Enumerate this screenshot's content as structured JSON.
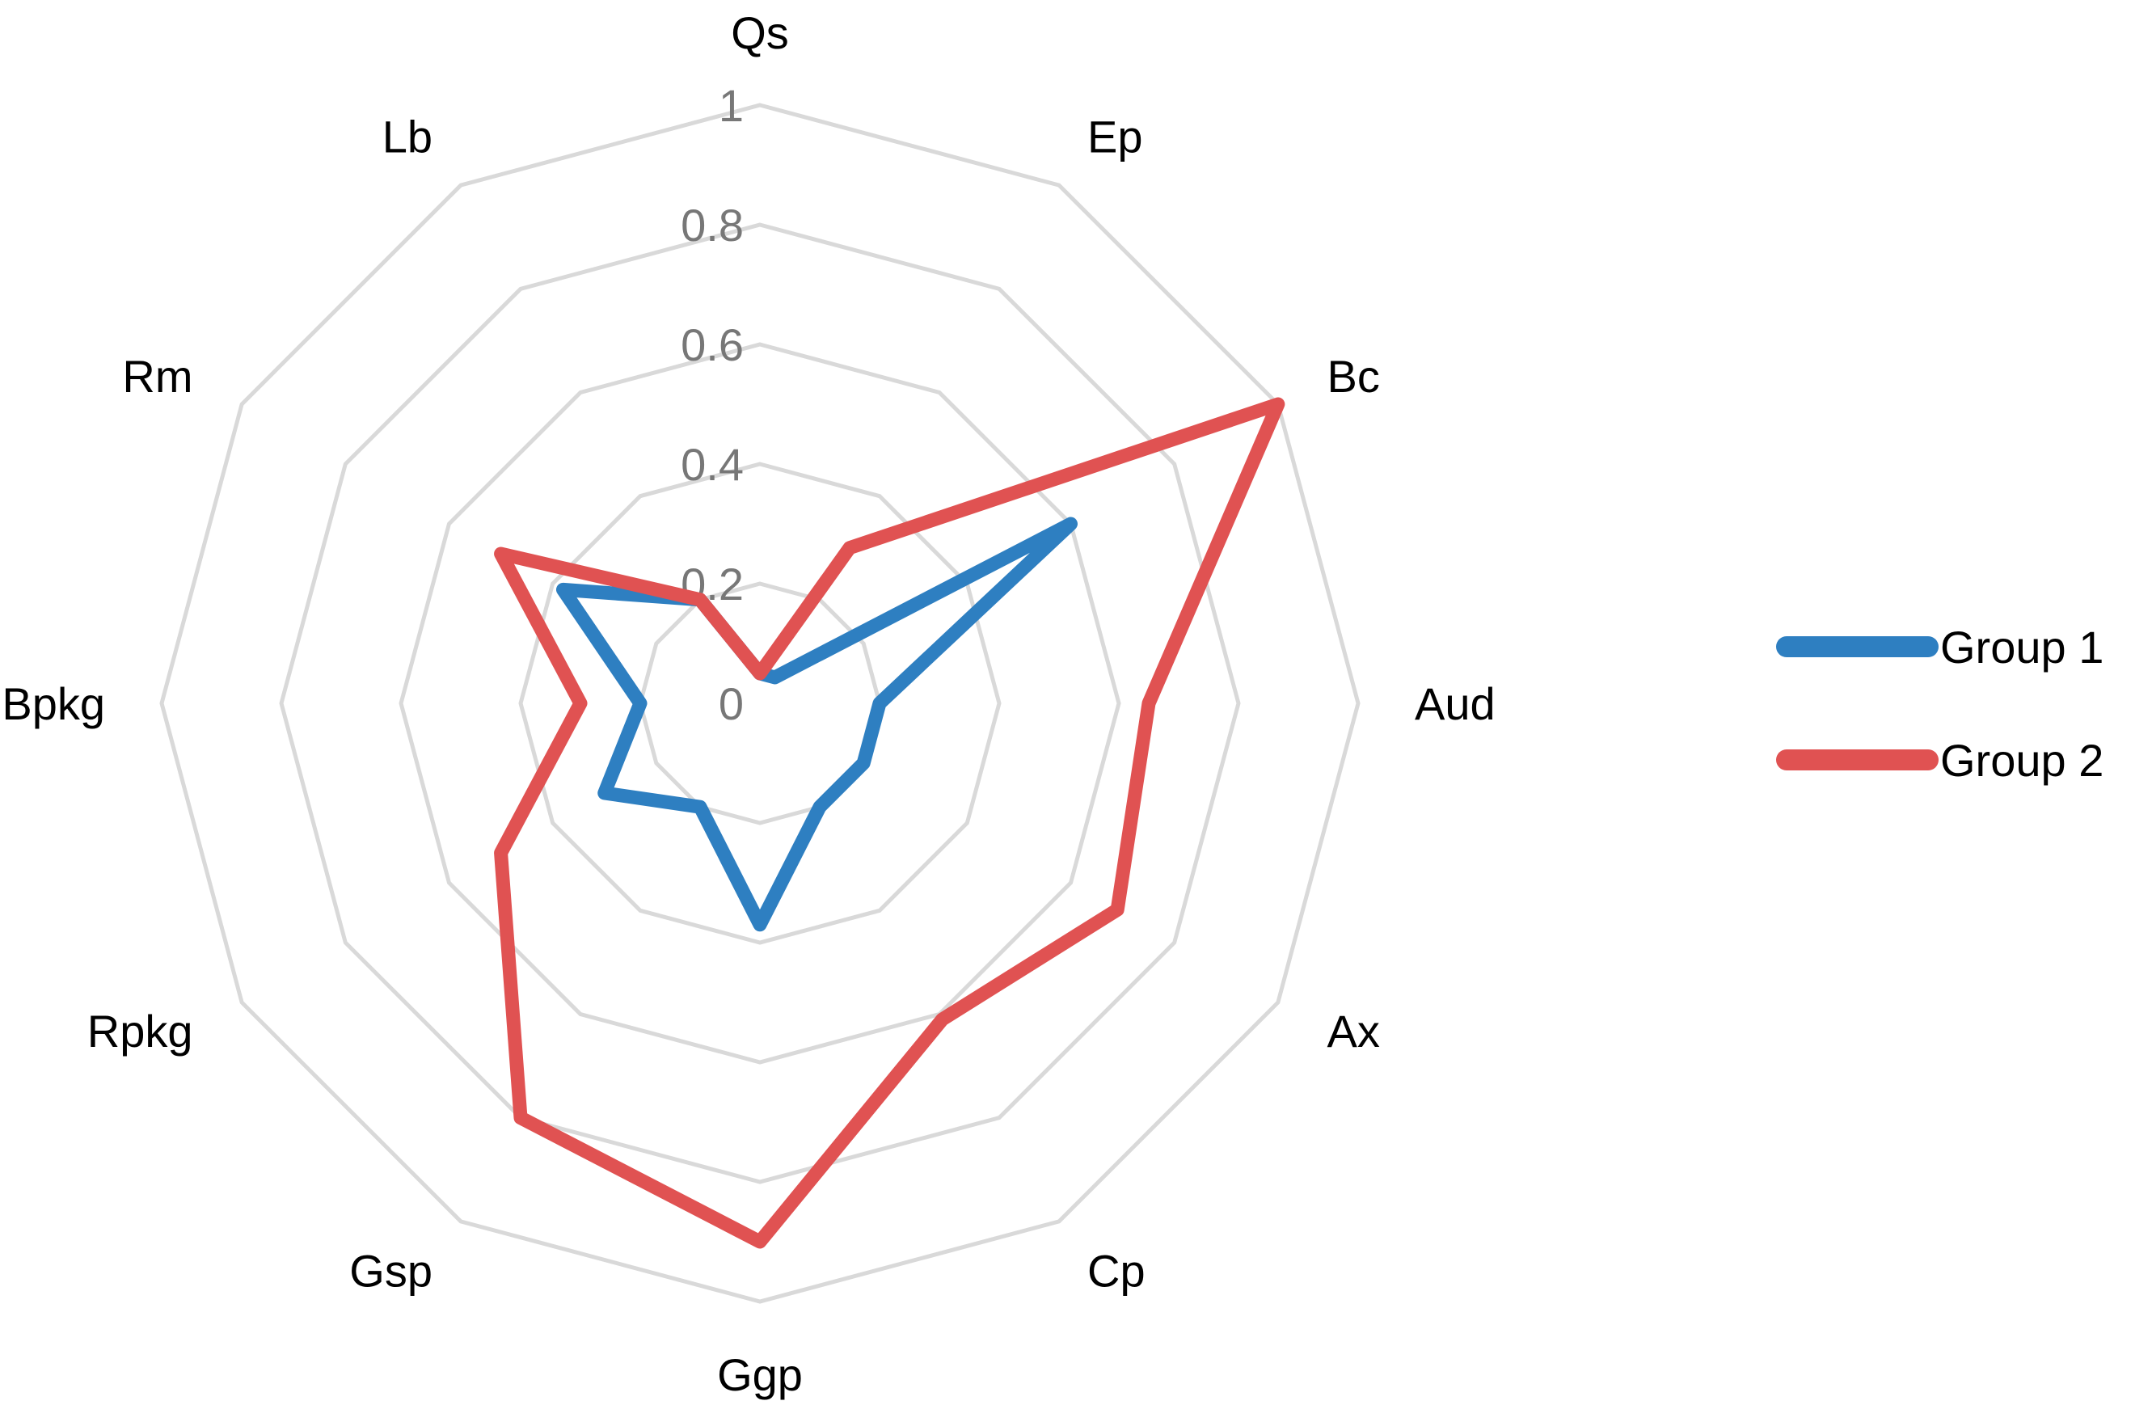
{
  "chart_data": {
    "type": "radar",
    "categories": [
      "Qs",
      "Ep",
      "Bc",
      "Aud",
      "Ax",
      "Cp",
      "Ggp",
      "Gsp",
      "Rpkg",
      "Bpkg",
      "Rm",
      "Lb"
    ],
    "series": [
      {
        "name": "Group 1",
        "color": "#2e7fc1",
        "values": [
          0.05,
          0.05,
          0.6,
          0.2,
          0.2,
          0.2,
          0.37,
          0.2,
          0.3,
          0.2,
          0.38,
          0.2
        ]
      },
      {
        "name": "Group 2",
        "color": "#e05252",
        "values": [
          0.05,
          0.3,
          1.0,
          0.65,
          0.69,
          0.61,
          0.9,
          0.8,
          0.5,
          0.3,
          0.5,
          0.2
        ]
      }
    ],
    "ticks": [
      "0",
      "0.2",
      "0.4",
      "0.6",
      "0.8",
      "1"
    ],
    "rlim": [
      0,
      1
    ],
    "grid": true,
    "legend_position": "right"
  }
}
